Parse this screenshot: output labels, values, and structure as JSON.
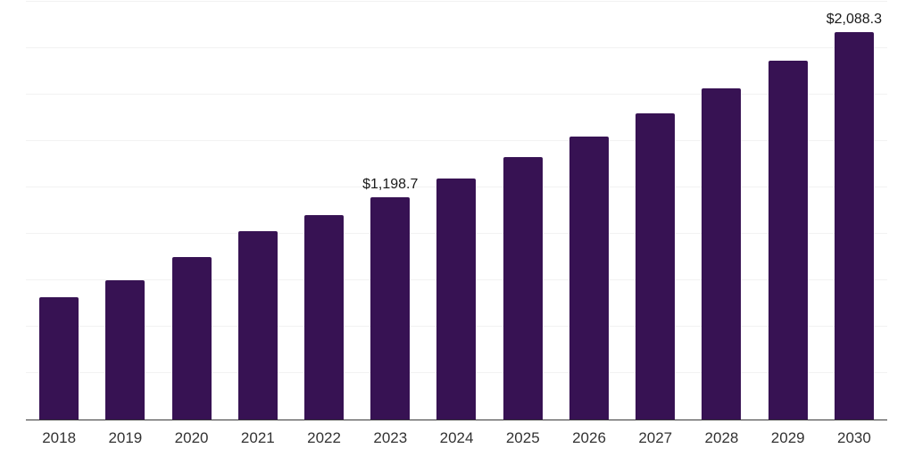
{
  "chart_data": {
    "type": "bar",
    "title": "",
    "xlabel": "",
    "ylabel": "",
    "categories": [
      "2018",
      "2019",
      "2020",
      "2021",
      "2022",
      "2023",
      "2024",
      "2025",
      "2026",
      "2027",
      "2028",
      "2029",
      "2030"
    ],
    "values": [
      660,
      748,
      874,
      1013,
      1102,
      1198.7,
      1300,
      1412,
      1526,
      1648,
      1782,
      1931,
      2088.3
    ],
    "data_labels": [
      "",
      "",
      "",
      "",
      "",
      "$1,198.7",
      "",
      "",
      "",
      "",
      "",
      "",
      "$2,088.3"
    ],
    "ylim": [
      0,
      2250
    ],
    "gridline_step": 250,
    "grid": "horizontal-light",
    "legend": "none",
    "y_axis_tick_labels": "none"
  },
  "colors": {
    "background": "#ffffff",
    "bar": "#371253",
    "grid": "#f2f2f2",
    "axis": "#3a3a3a",
    "data_label": "#1a1a1a",
    "tick_label": "#333333"
  }
}
